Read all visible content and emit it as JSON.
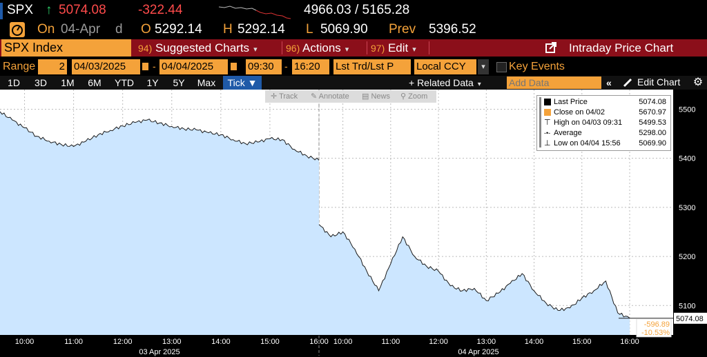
{
  "ticker": {
    "symbol": "SPX",
    "arrow": "↑",
    "last": "5074.08",
    "change": "-322.44",
    "range": "4966.03 / 5165.28"
  },
  "quote_row": {
    "on_label": "On",
    "date": "04-Apr",
    "d_label": "d",
    "open_label": "O",
    "open": "5292.14",
    "high_label": "H",
    "high": "5292.14",
    "low_label": "L",
    "low": "5069.90",
    "prev_label": "Prev",
    "prev": "5396.52"
  },
  "menu": {
    "index_name": "SPX Index",
    "suggested_num": "94)",
    "suggested_label": "Suggested Charts",
    "actions_num": "96)",
    "actions_label": "Actions",
    "edit_num": "97)",
    "edit_label": "Edit",
    "chart_title": "Intraday Price Chart"
  },
  "range_row": {
    "range_label": "Range",
    "range_value": "2",
    "start_date": "04/03/2025",
    "dash1": "-",
    "end_date": "04/04/2025",
    "start_time": "09:30",
    "dash2": "-",
    "end_time": "16:20",
    "price_type": "Lst Trd/Lst P",
    "currency": "Local CCY",
    "key_events": "Key Events"
  },
  "period_row": {
    "periods": [
      "1D",
      "3D",
      "1M",
      "6M",
      "YTD",
      "1Y",
      "5Y",
      "Max",
      "Tick ▼"
    ],
    "active_index": 8,
    "related_data": "+ Related Data",
    "add_data_placeholder": "Add Data",
    "edit_chart": "Edit Chart"
  },
  "tool_strip": {
    "track": "Track",
    "annotate": "Annotate",
    "news": "News",
    "zoom": "Zoom"
  },
  "legend": {
    "items": [
      {
        "label": "Last Price",
        "value": "5074.08"
      },
      {
        "label": "Close on 04/02",
        "value": "5670.97"
      },
      {
        "label": "High on 04/03 09:31",
        "value": "5499.53"
      },
      {
        "label": "Average",
        "value": "5298.00"
      },
      {
        "label": "Low on 04/04 15:56",
        "value": "5069.90"
      }
    ]
  },
  "colors": {
    "accent_orange": "#f4a23a",
    "menu_red": "#8b0f1a",
    "area_fill": "#cce6ff",
    "line": "#1a1a1a",
    "negative": "#ff4b4b"
  },
  "chart_data": {
    "type": "area",
    "title": "",
    "y_ticks": [
      "5500",
      "5400",
      "5300",
      "5200",
      "5100"
    ],
    "ylim": [
      5040,
      5540
    ],
    "x_tick_labels_day1": [
      "10:00",
      "11:00",
      "12:00",
      "13:00",
      "14:00",
      "15:00",
      "16:00"
    ],
    "x_tick_labels_day2": [
      "10:00",
      "11:00",
      "12:00",
      "13:00",
      "14:00",
      "15:00",
      "16:00"
    ],
    "day_labels": [
      "03 Apr 2025",
      "04 Apr 2025"
    ],
    "last_value_label": "5074.08",
    "change_label": "-596.89",
    "change_pct_label": "-10.53%",
    "series": [
      {
        "name": "Last Price",
        "day": 1,
        "times": [
          "09:30",
          "09:45",
          "10:00",
          "10:15",
          "10:30",
          "10:45",
          "11:00",
          "11:15",
          "11:30",
          "11:45",
          "12:00",
          "12:15",
          "12:30",
          "12:45",
          "13:00",
          "13:15",
          "13:30",
          "13:45",
          "14:00",
          "14:15",
          "14:30",
          "14:45",
          "15:00",
          "15:15",
          "15:30",
          "15:45",
          "16:00"
        ],
        "values": [
          5495,
          5478,
          5462,
          5445,
          5435,
          5428,
          5424,
          5435,
          5448,
          5457,
          5466,
          5473,
          5478,
          5472,
          5465,
          5460,
          5458,
          5452,
          5448,
          5438,
          5430,
          5433,
          5440,
          5438,
          5418,
          5405,
          5396
        ]
      },
      {
        "name": "Last Price",
        "day": 2,
        "times": [
          "09:30",
          "09:45",
          "10:00",
          "10:15",
          "10:30",
          "10:45",
          "11:00",
          "11:15",
          "11:30",
          "11:45",
          "12:00",
          "12:15",
          "12:30",
          "12:45",
          "13:00",
          "13:15",
          "13:30",
          "13:45",
          "14:00",
          "14:15",
          "14:30",
          "14:45",
          "15:00",
          "15:15",
          "15:30",
          "15:45",
          "16:00"
        ],
        "values": [
          5265,
          5240,
          5250,
          5215,
          5170,
          5130,
          5185,
          5240,
          5200,
          5180,
          5170,
          5140,
          5130,
          5135,
          5110,
          5125,
          5145,
          5165,
          5130,
          5105,
          5090,
          5095,
          5115,
          5130,
          5150,
          5085,
          5074
        ]
      }
    ]
  }
}
